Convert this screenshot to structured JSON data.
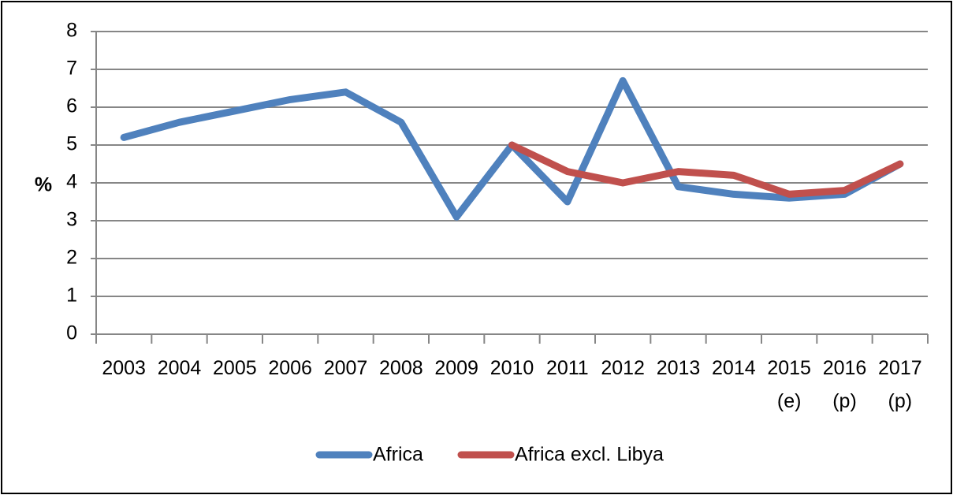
{
  "chart_data": {
    "type": "line",
    "categories": [
      "2003",
      "2004",
      "2005",
      "2006",
      "2007",
      "2008",
      "2009",
      "2010",
      "2011",
      "2012",
      "2013",
      "2014",
      "2015\n(e)",
      "2016\n(p)",
      "2017\n(p)"
    ],
    "series": [
      {
        "name": "Africa",
        "color": "#4f81bd",
        "values": [
          5.2,
          5.6,
          5.9,
          6.2,
          6.4,
          5.6,
          3.1,
          5.0,
          3.5,
          6.7,
          3.9,
          3.7,
          3.6,
          3.7,
          4.5
        ]
      },
      {
        "name": "Africa excl. Libya",
        "color": "#c0504d",
        "values": [
          null,
          null,
          null,
          null,
          null,
          null,
          null,
          5.0,
          4.3,
          4.0,
          4.3,
          4.2,
          3.7,
          3.8,
          4.5
        ]
      }
    ],
    "ylabel": "%",
    "ylim": [
      0,
      8
    ],
    "yticks": [
      0,
      1,
      2,
      3,
      4,
      5,
      6,
      7,
      8
    ],
    "grid": true,
    "legend": "bottom"
  }
}
